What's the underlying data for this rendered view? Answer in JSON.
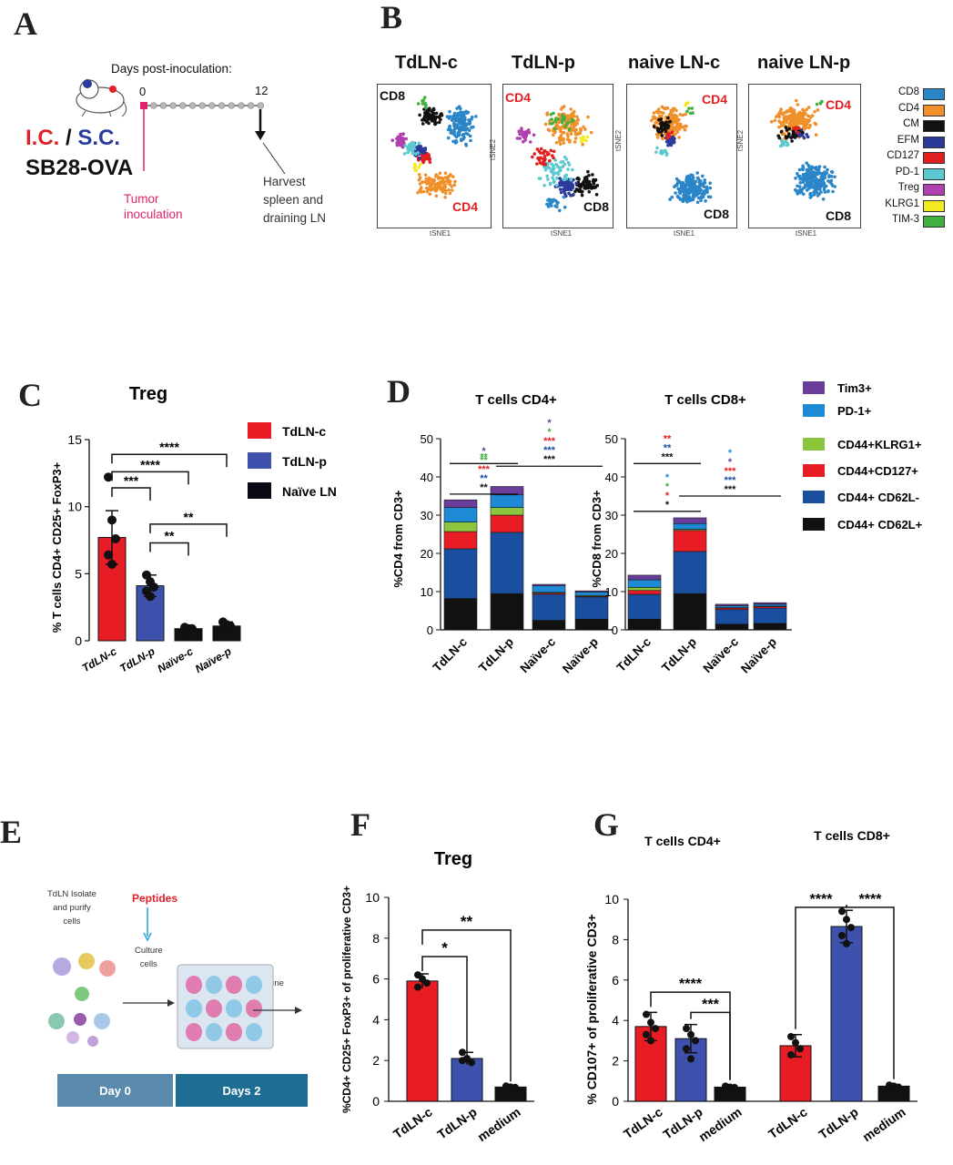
{
  "panel_labels": {
    "a": "A",
    "b": "B",
    "c": "C",
    "d": "D",
    "e": "E",
    "f": "F",
    "g": "G"
  },
  "panel_a": {
    "timeline_title": "Days post-inoculation:",
    "day_start": "0",
    "day_end": "12",
    "route_ic": "I.C.",
    "route_sep": "/",
    "route_sc": "S.C.",
    "model": "SB28-OVA",
    "tumor_label": "Tumor\ninoculation",
    "harvest_label": "Harvest\nspleen and\ndraining LN",
    "colors": {
      "ic": "#e0202a",
      "sc": "#2a3c9c",
      "tumor": "#e0236a"
    }
  },
  "panel_b": {
    "plots": [
      {
        "title": "TdLN-c",
        "top_label": "CD8",
        "top_color": "#111111",
        "bottom_label": "CD4",
        "bottom_color": "#e02020"
      },
      {
        "title": "TdLN-p",
        "top_label": "CD4",
        "top_color": "#e02020",
        "bottom_label": "CD8",
        "bottom_color": "#111111"
      },
      {
        "title": "naive LN-c",
        "top_label": "CD4",
        "top_color": "#e02020",
        "bottom_label": "CD8",
        "bottom_color": "#111111"
      },
      {
        "title": "naive LN-p",
        "top_label": "CD4",
        "top_color": "#e02020",
        "bottom_label": "CD8",
        "bottom_color": "#111111"
      }
    ],
    "axis_x": "tSNE1",
    "axis_y": "tSNE2",
    "legend": [
      {
        "label": "CD8",
        "color": "#2b86c8"
      },
      {
        "label": "CD4",
        "color": "#f0902a"
      },
      {
        "label": "CM",
        "color": "#111111"
      },
      {
        "label": "EFM",
        "color": "#2a3a9a"
      },
      {
        "label": "CD127",
        "color": "#e02020"
      },
      {
        "label": "PD-1",
        "color": "#5cc8d0"
      },
      {
        "label": "Treg",
        "color": "#b040b0"
      },
      {
        "label": "KLRG1",
        "color": "#f2ea20"
      },
      {
        "label": "TIM-3",
        "color": "#40b040"
      }
    ]
  },
  "panel_e": {
    "isolate_label": "TdLN Isolate\nand purify\ncells",
    "peptides": "Peptides",
    "culture": "Culture\ncells",
    "examine": "Examine",
    "day0": "Day 0",
    "days2": "Days 2"
  },
  "chart_data": [
    {
      "id": "C",
      "type": "bar",
      "title": "Treg",
      "ylabel": "% T cells CD4+ CD25+ FoxP3+",
      "categories": [
        "TdLN-c",
        "TdLN-p",
        "Naïve-c",
        "Naïve-p"
      ],
      "values": [
        7.7,
        4.1,
        0.9,
        1.1
      ],
      "errors": [
        2.0,
        0.8,
        0.2,
        0.3
      ],
      "bar_colors": [
        "#e81c24",
        "#3e52ad",
        "#111111",
        "#111111"
      ],
      "points": [
        [
          12.2,
          9.0,
          7.6,
          6.4,
          5.7
        ],
        [
          4.9,
          4.4,
          4.0,
          3.7,
          3.3
        ],
        [
          1.0,
          0.9,
          0.9,
          0.8,
          0.8
        ],
        [
          1.4,
          1.2,
          1.1,
          0.9,
          0.8
        ]
      ],
      "ylim": [
        0,
        15
      ],
      "yticks": [
        0,
        5,
        10,
        15
      ],
      "sig": [
        {
          "from": 0,
          "to": 3,
          "label": "****",
          "y": 13.9
        },
        {
          "from": 0,
          "to": 2,
          "label": "****",
          "y": 12.6
        },
        {
          "from": 0,
          "to": 1,
          "label": "***",
          "y": 11.4
        },
        {
          "from": 1,
          "to": 3,
          "label": "**",
          "y": 8.7
        },
        {
          "from": 1,
          "to": 2,
          "label": "**",
          "y": 7.3
        }
      ],
      "legend": [
        {
          "label": "TdLN-c",
          "color": "#e81c24"
        },
        {
          "label": "TdLN-p",
          "color": "#3e52ad"
        },
        {
          "label": "Naïve LN",
          "color": "#0a0a14"
        }
      ]
    },
    {
      "id": "D-left",
      "type": "bar",
      "stacked": true,
      "title": "T cells CD4+",
      "ylabel": "%CD4 from CD3+",
      "categories": [
        "TdLN-c",
        "TdLN-p",
        "Naïve-c",
        "Naïve-p"
      ],
      "ylim": [
        0,
        50
      ],
      "yticks": [
        0,
        10,
        20,
        30,
        40,
        50
      ],
      "series": [
        {
          "name": "CD44+ CD62L+",
          "color": "#111111",
          "values": [
            8.2,
            9.5,
            2.5,
            2.8
          ]
        },
        {
          "name": "CD44+ CD62L-",
          "color": "#1a4fa0",
          "values": [
            13.0,
            16.0,
            6.8,
            5.8
          ]
        },
        {
          "name": "CD44+CD127+",
          "color": "#e81c24",
          "values": [
            4.5,
            4.5,
            0.3,
            0.2
          ]
        },
        {
          "name": "CD44+KLRG1+",
          "color": "#8cc63f",
          "values": [
            2.5,
            2.0,
            0.2,
            0.2
          ]
        },
        {
          "name": "PD-1+",
          "color": "#1e8ad6",
          "values": [
            3.8,
            3.3,
            1.7,
            0.9
          ]
        },
        {
          "name": "Tim3+",
          "color": "#6a3d9a",
          "values": [
            2.0,
            2.2,
            0.4,
            0.3
          ]
        }
      ],
      "sig": [
        {
          "label": "**",
          "colors": [
            "#40b040"
          ],
          "from": 0,
          "to": 1,
          "y": 43.5
        },
        {
          "label": "*\n**\n***\n**\n**",
          "colors": [
            "#6a3d9a",
            "#40b040",
            "#e81c24",
            "#1a4fa0",
            "#111111"
          ],
          "from": 0,
          "to": 1,
          "y": 35.5
        },
        {
          "label": "*\n*\n***\n***\n***",
          "colors": [
            "#6a3d9a",
            "#40b040",
            "#e81c24",
            "#1a4fa0",
            "#111111"
          ],
          "from": 1,
          "to": 3,
          "y": 42.8
        }
      ]
    },
    {
      "id": "D-right",
      "type": "bar",
      "stacked": true,
      "title": "T cells CD8+",
      "ylabel": "%CD8 from CD3+",
      "categories": [
        "TdLN-c",
        "TdLN-p",
        "Naïve-c",
        "Naïve-p"
      ],
      "ylim": [
        0,
        50
      ],
      "yticks": [
        0,
        10,
        20,
        30,
        40,
        50
      ],
      "series": [
        {
          "name": "CD44+ CD62L+",
          "color": "#111111",
          "values": [
            2.8,
            9.5,
            1.5,
            1.7
          ]
        },
        {
          "name": "CD44+ CD62L-",
          "color": "#1a4fa0",
          "values": [
            6.5,
            11.0,
            3.8,
            4.0
          ]
        },
        {
          "name": "CD44+CD127+",
          "color": "#e81c24",
          "values": [
            1.0,
            5.5,
            0.4,
            0.4
          ]
        },
        {
          "name": "CD44+KLRG1+",
          "color": "#8cc63f",
          "values": [
            0.8,
            0.3,
            0.1,
            0.1
          ]
        },
        {
          "name": "PD-1+",
          "color": "#1e8ad6",
          "values": [
            2.0,
            1.5,
            0.5,
            0.5
          ]
        },
        {
          "name": "Tim3+",
          "color": "#6a3d9a",
          "values": [
            1.2,
            1.5,
            0.4,
            0.4
          ]
        }
      ],
      "sig": [
        {
          "label": "**\n**\n***",
          "colors": [
            "#e81c24",
            "#1a4fa0",
            "#111111"
          ],
          "from": 0,
          "to": 1,
          "y": 43.5
        },
        {
          "label": "*\n*\n*\n*",
          "colors": [
            "#1e8ad6",
            "#40b040",
            "#e81c24",
            "#111111"
          ],
          "from": 0,
          "to": 1,
          "y": 31
        },
        {
          "label": "*\n*\n***\n***\n***",
          "colors": [
            "#1e8ad6",
            "#6a3d9a",
            "#e81c24",
            "#1a4fa0",
            "#111111"
          ],
          "from": 1,
          "to": 3,
          "y": 35
        }
      ],
      "legend": [
        {
          "label": "Tim3+",
          "color": "#6a3d9a"
        },
        {
          "label": "PD-1+",
          "color": "#1e8ad6"
        },
        {
          "label": "CD44+KLRG1+",
          "color": "#8cc63f"
        },
        {
          "label": "CD44+CD127+",
          "color": "#e81c24"
        },
        {
          "label": "CD44+ CD62L-",
          "color": "#1a4fa0"
        },
        {
          "label": "CD44+ CD62L+",
          "color": "#111111"
        }
      ]
    },
    {
      "id": "F",
      "type": "bar",
      "title": "Treg",
      "ylabel": "%CD4+ CD25+ FoxP3+ of proliferative CD3+",
      "categories": [
        "TdLN-c",
        "TdLN-p",
        "medium"
      ],
      "values": [
        5.9,
        2.1,
        0.7
      ],
      "errors": [
        0.35,
        0.3,
        0.08
      ],
      "bar_colors": [
        "#e81c24",
        "#3e52ad",
        "#111111"
      ],
      "points": [
        [
          6.2,
          6.0,
          5.8,
          5.6
        ],
        [
          2.4,
          2.1,
          1.9,
          2.0
        ],
        [
          0.75,
          0.7,
          0.68,
          0.72
        ]
      ],
      "ylim": [
        0,
        10
      ],
      "yticks": [
        0,
        2,
        4,
        6,
        8,
        10
      ],
      "sig": [
        {
          "from": 0,
          "to": 2,
          "label": "**",
          "y": 8.4
        },
        {
          "from": 0,
          "to": 1,
          "label": "*",
          "y": 7.1
        }
      ]
    },
    {
      "id": "G",
      "type": "bar",
      "title_left": "T cells CD4+",
      "title_right": "T cells CD8+",
      "ylabel": "% CD107+ of  proliferative CD3+",
      "categories": [
        "TdLN-c",
        "TdLN-p",
        "medium",
        "TdLN-c",
        "TdLN-p",
        "medium"
      ],
      "values": [
        3.7,
        3.1,
        0.7,
        2.75,
        8.65,
        0.75
      ],
      "errors": [
        0.7,
        0.7,
        0.08,
        0.55,
        0.8,
        0.08
      ],
      "bar_colors": [
        "#e81c24",
        "#3e52ad",
        "#111111",
        "#e81c24",
        "#3e52ad",
        "#111111"
      ],
      "points": [
        [
          4.3,
          3.9,
          3.6,
          3.3,
          3.0
        ],
        [
          3.6,
          3.3,
          3.0,
          2.6,
          2.1
        ],
        [
          0.75,
          0.7,
          0.68
        ],
        [
          3.2,
          2.9,
          2.6,
          2.3
        ],
        [
          9.4,
          9.0,
          8.6,
          8.2,
          7.8
        ],
        [
          0.8,
          0.75,
          0.7
        ]
      ],
      "ylim": [
        0,
        10
      ],
      "yticks": [
        0,
        2,
        4,
        6,
        8,
        10
      ],
      "sig": [
        {
          "from": 0,
          "to": 2,
          "label": "****",
          "y": 5.4
        },
        {
          "from": 1,
          "to": 2,
          "label": "***",
          "y": 4.4
        },
        {
          "from": 3,
          "to": 4,
          "label": "****",
          "y": 9.6
        },
        {
          "from": 4,
          "to": 5,
          "label": "****",
          "y": 9.6
        }
      ]
    }
  ]
}
